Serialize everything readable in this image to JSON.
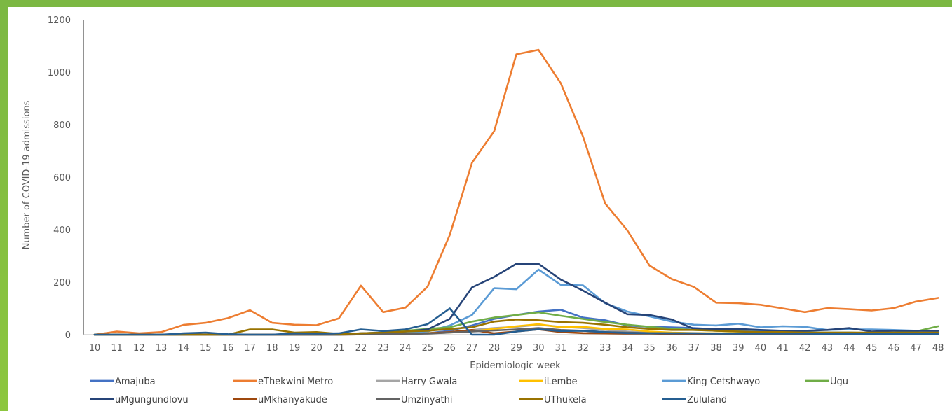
{
  "chart_data": {
    "type": "line",
    "title": "",
    "xlabel": "Epidemiologic week",
    "ylabel": "Number of COVID-19 admissions",
    "ylim": [
      0,
      1200
    ],
    "yticks": [
      0,
      200,
      400,
      600,
      800,
      1000,
      1200
    ],
    "x": [
      10,
      11,
      12,
      13,
      14,
      15,
      16,
      17,
      18,
      19,
      20,
      21,
      22,
      23,
      24,
      25,
      26,
      27,
      28,
      29,
      30,
      31,
      32,
      33,
      34,
      35,
      36,
      37,
      38,
      39,
      40,
      41,
      42,
      43,
      44,
      45,
      46,
      47,
      48
    ],
    "grid": false,
    "legend_position": "bottom",
    "series": [
      {
        "name": "Amajuba",
        "color": "#4472c4",
        "values": [
          0,
          0,
          0,
          0,
          0,
          0,
          0,
          0,
          0,
          0,
          0,
          0,
          2,
          2,
          3,
          5,
          15,
          35,
          60,
          75,
          88,
          95,
          65,
          55,
          35,
          30,
          28,
          25,
          20,
          18,
          15,
          12,
          10,
          8,
          8,
          6,
          6,
          5,
          5
        ]
      },
      {
        "name": "eThekwini Metro",
        "color": "#ed7d31",
        "values": [
          0,
          12,
          5,
          10,
          37,
          45,
          63,
          93,
          45,
          38,
          36,
          62,
          187,
          86,
          103,
          183,
          380,
          655,
          775,
          1068,
          1085,
          958,
          755,
          500,
          397,
          263,
          212,
          182,
          122,
          120,
          114,
          100,
          86,
          101,
          97,
          92,
          101,
          126,
          140
        ]
      },
      {
        "name": "Harry Gwala",
        "color": "#a5a5a5",
        "values": [
          0,
          0,
          0,
          0,
          0,
          0,
          0,
          0,
          0,
          0,
          0,
          0,
          1,
          2,
          3,
          5,
          10,
          18,
          25,
          30,
          38,
          30,
          25,
          18,
          12,
          8,
          6,
          5,
          5,
          4,
          4,
          4,
          3,
          3,
          3,
          3,
          3,
          3,
          3
        ]
      },
      {
        "name": "iLembe",
        "color": "#ffc000",
        "values": [
          0,
          0,
          0,
          0,
          0,
          0,
          0,
          0,
          0,
          0,
          0,
          0,
          2,
          3,
          4,
          6,
          8,
          12,
          22,
          32,
          40,
          28,
          30,
          22,
          20,
          12,
          8,
          6,
          5,
          5,
          5,
          4,
          4,
          4,
          4,
          4,
          4,
          4,
          4
        ]
      },
      {
        "name": "King Cetshwayo",
        "color": "#5b9bd5",
        "values": [
          0,
          0,
          0,
          0,
          0,
          0,
          0,
          0,
          0,
          0,
          0,
          0,
          3,
          5,
          8,
          12,
          35,
          75,
          177,
          173,
          248,
          190,
          188,
          120,
          88,
          70,
          50,
          38,
          35,
          42,
          28,
          32,
          30,
          18,
          20,
          20,
          18,
          15,
          14
        ]
      },
      {
        "name": "Ugu",
        "color": "#70ad47",
        "values": [
          0,
          0,
          0,
          0,
          0,
          0,
          0,
          0,
          0,
          0,
          0,
          0,
          5,
          8,
          15,
          22,
          28,
          50,
          65,
          75,
          85,
          72,
          60,
          48,
          38,
          30,
          22,
          18,
          15,
          12,
          10,
          8,
          8,
          8,
          8,
          7,
          8,
          12,
          32
        ]
      },
      {
        "name": "uMgungundlovu",
        "color": "#264478",
        "values": [
          0,
          0,
          0,
          0,
          0,
          0,
          0,
          0,
          0,
          0,
          0,
          0,
          5,
          8,
          12,
          20,
          60,
          180,
          220,
          270,
          270,
          210,
          168,
          122,
          78,
          75,
          58,
          22,
          22,
          22,
          18,
          15,
          15,
          18,
          25,
          12,
          15,
          15,
          15
        ]
      },
      {
        "name": "uMkhanyakude",
        "color": "#9e480e",
        "values": [
          0,
          0,
          0,
          0,
          0,
          0,
          0,
          0,
          0,
          0,
          0,
          0,
          1,
          2,
          3,
          5,
          10,
          18,
          5,
          12,
          20,
          10,
          6,
          5,
          4,
          4,
          3,
          3,
          3,
          3,
          3,
          3,
          3,
          3,
          3,
          3,
          3,
          3,
          3
        ]
      },
      {
        "name": "Umzinyathi",
        "color": "#636363",
        "values": [
          0,
          0,
          0,
          0,
          0,
          0,
          0,
          0,
          0,
          0,
          0,
          0,
          1,
          2,
          3,
          4,
          8,
          12,
          16,
          20,
          25,
          18,
          15,
          10,
          8,
          6,
          5,
          5,
          4,
          4,
          4,
          4,
          4,
          4,
          4,
          4,
          4,
          4,
          4
        ]
      },
      {
        "name": "UThukela",
        "color": "#997300",
        "values": [
          0,
          0,
          0,
          0,
          0,
          0,
          0,
          20,
          20,
          8,
          10,
          3,
          5,
          8,
          12,
          15,
          22,
          28,
          50,
          58,
          55,
          48,
          45,
          38,
          28,
          22,
          18,
          18,
          15,
          12,
          10,
          10,
          8,
          8,
          8,
          8,
          8,
          8,
          8
        ]
      },
      {
        "name": "Zululand",
        "color": "#255e91",
        "values": [
          0,
          0,
          0,
          0,
          5,
          8,
          2,
          0,
          0,
          5,
          4,
          5,
          20,
          14,
          20,
          40,
          100,
          0,
          0,
          12,
          20,
          14,
          15,
          10,
          6,
          5,
          5,
          5,
          4,
          4,
          4,
          4,
          4,
          3,
          3,
          3,
          3,
          3,
          3
        ]
      }
    ]
  }
}
